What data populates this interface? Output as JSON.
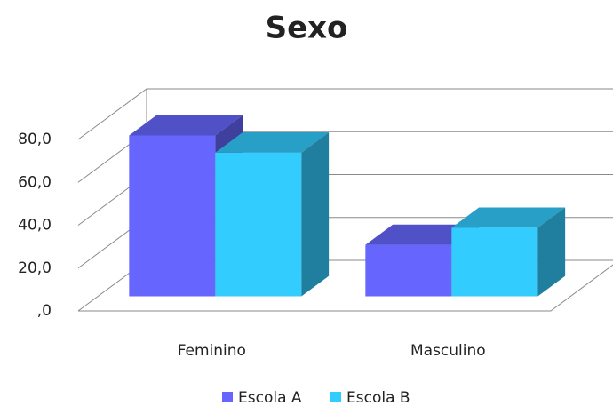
{
  "chart_data": {
    "type": "bar3d",
    "title": "Sexo",
    "categories": [
      "Feminino",
      "Masculino"
    ],
    "series": [
      {
        "name": "Escola A",
        "color": "#6666ff",
        "values": [
          75,
          24
        ]
      },
      {
        "name": "Escola B",
        "color": "#33ccff",
        "values": [
          67,
          32
        ]
      }
    ],
    "ylim": [
      0,
      80
    ],
    "yticks": [
      {
        "value": 0,
        "label": ",0"
      },
      {
        "value": 20,
        "label": "20,0"
      },
      {
        "value": 40,
        "label": "40,0"
      },
      {
        "value": 60,
        "label": "60,0"
      },
      {
        "value": 80,
        "label": "80,0"
      }
    ],
    "grid": true,
    "legend": "bottom"
  }
}
